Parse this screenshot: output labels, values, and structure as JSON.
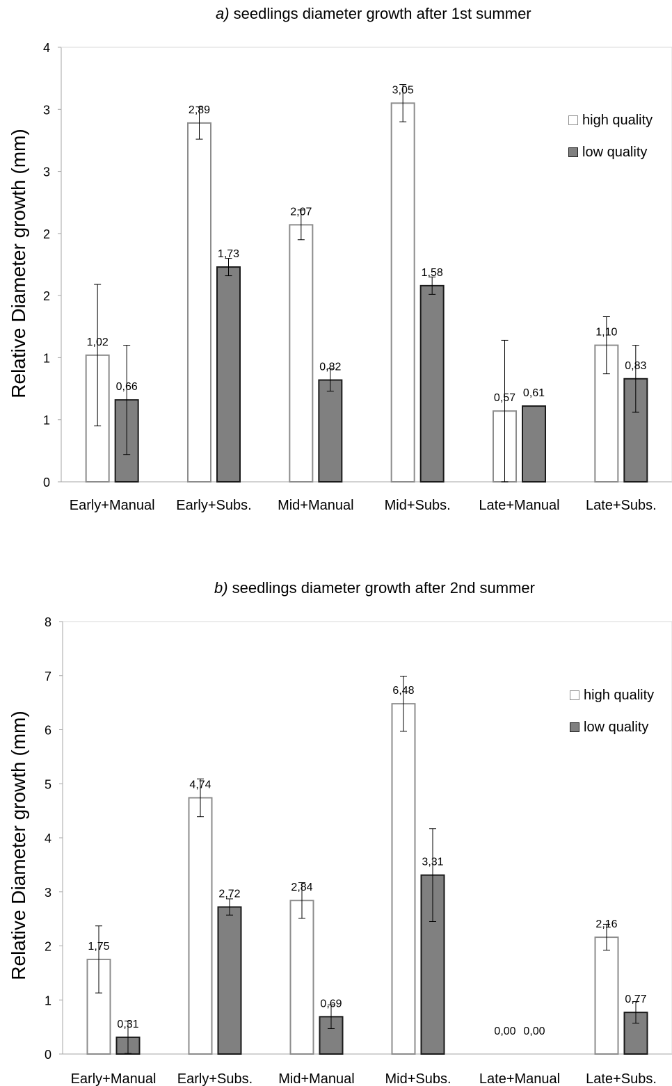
{
  "legend": {
    "high": "high quality",
    "low": "low quality"
  },
  "colors": {
    "high_fill": "#ffffff",
    "high_stroke": "#8c8c8c",
    "low_fill": "#808080",
    "low_stroke": "#1a1a1a",
    "axis": "#a6a6a6"
  },
  "charts": [
    {
      "title_prefix": "a)",
      "title_rest": " seedlings diameter growth after 1st summer",
      "ylabel": "Relative Diameter growth (mm)"
    },
    {
      "title_prefix": "b)",
      "title_rest": " seedlings diameter growth after 2nd summer",
      "ylabel": "Relative Diameter growth (mm)"
    }
  ],
  "chart_data": [
    {
      "type": "bar",
      "title": "a) seedlings diameter growth after 1st summer",
      "ylabel": "Relative Diameter growth (mm)",
      "categories": [
        "Early+Manual",
        "Early+Subs.",
        "Mid+Manual",
        "Mid+Subs.",
        "Late+Manual",
        "Late+Subs."
      ],
      "ylim": [
        0,
        3.5
      ],
      "yticks": [
        0,
        0.5,
        1,
        1.5,
        2,
        2.5,
        3,
        3.5
      ],
      "ytick_labels": [
        "0",
        "1",
        "1",
        "2",
        "2",
        "3",
        "3",
        "4"
      ],
      "series": [
        {
          "name": "high quality",
          "values": [
            1.02,
            2.89,
            2.07,
            3.05,
            0.57,
            1.1
          ],
          "labels": [
            "1,02",
            "2,89",
            "2,07",
            "3,05",
            "0,57",
            "1,10"
          ],
          "err": [
            0.57,
            0.13,
            0.12,
            0.15,
            0.57,
            0.23
          ]
        },
        {
          "name": "low quality",
          "values": [
            0.66,
            1.73,
            0.82,
            1.58,
            0.61,
            0.83
          ],
          "labels": [
            "0,66",
            "1,73",
            "0,82",
            "1,58",
            "0,61",
            "0,83"
          ],
          "err": [
            0.44,
            0.07,
            0.09,
            0.07,
            0.0,
            0.27
          ]
        }
      ],
      "grid": false,
      "legend_position": "right"
    },
    {
      "type": "bar",
      "title": "b) seedlings diameter growth after 2nd summer",
      "ylabel": "Relative Diameter growth (mm)",
      "categories": [
        "Early+Manual",
        "Early+Subs.",
        "Mid+Manual",
        "Mid+Subs.",
        "Late+Manual",
        "Late+Subs."
      ],
      "ylim": [
        0,
        8
      ],
      "yticks": [
        0,
        1,
        2,
        3,
        4,
        5,
        6,
        7,
        8
      ],
      "ytick_labels": [
        "0",
        "1",
        "2",
        "3",
        "4",
        "5",
        "6",
        "7",
        "8"
      ],
      "series": [
        {
          "name": "high quality",
          "values": [
            1.75,
            4.74,
            2.84,
            6.48,
            0.0,
            2.16
          ],
          "labels": [
            "1,75",
            "4,74",
            "2,84",
            "6,48",
            "0,00",
            "2,16"
          ],
          "err": [
            0.62,
            0.35,
            0.33,
            0.51,
            0,
            0.24
          ]
        },
        {
          "name": "low quality",
          "values": [
            0.31,
            2.72,
            0.69,
            3.31,
            0.0,
            0.77
          ],
          "labels": [
            "0,31",
            "2,72",
            "0,69",
            "3,31",
            "0,00",
            "0,77"
          ],
          "err": [
            0.3,
            0.15,
            0.22,
            0.86,
            0,
            0.2
          ]
        }
      ],
      "grid": false,
      "legend_position": "right"
    }
  ]
}
